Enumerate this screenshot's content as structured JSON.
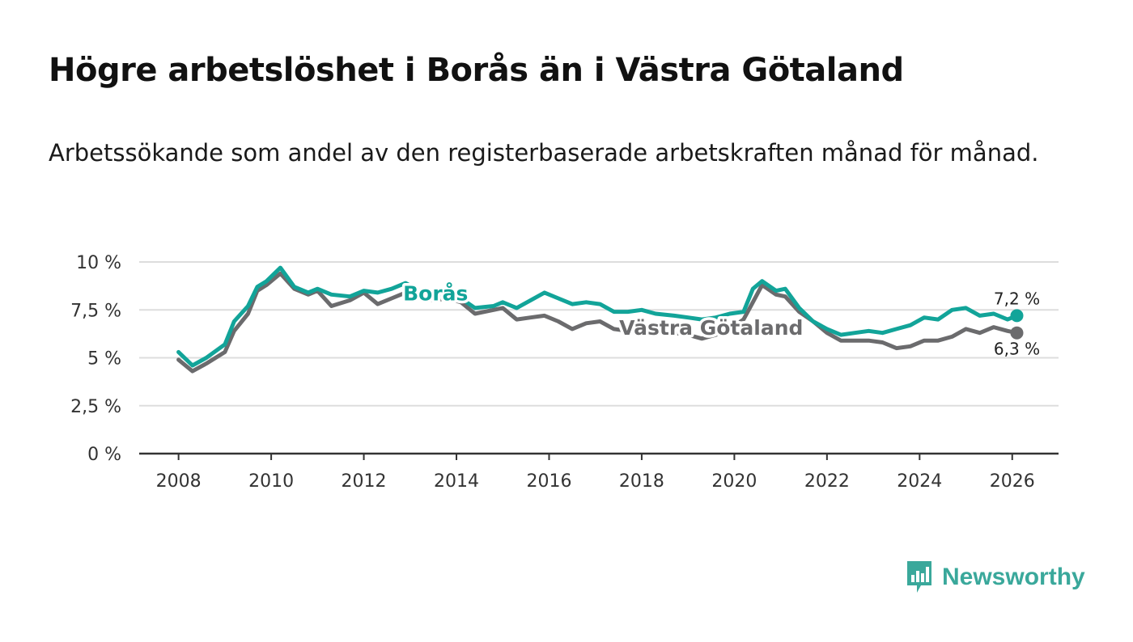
{
  "title": "Högre arbetslöshet i Borås än i Västra Götaland",
  "subtitle": "Arbetssökande som andel av den registerbaserade arbetskraften månad för månad.",
  "brand": "Newsworthy",
  "colors": {
    "boras": "#12a499",
    "vg": "#6b6b6d",
    "grid": "#dddddd",
    "axis": "#333333",
    "brand": "#3aa89b"
  },
  "chart_data": {
    "type": "line",
    "title": "Högre arbetslöshet i Borås än i Västra Götaland",
    "xlabel": "",
    "ylabel": "",
    "xlim": [
      2007.15,
      2027.0
    ],
    "ylim": [
      0,
      10
    ],
    "grid": true,
    "y_ticks": [
      0,
      2.5,
      5,
      7.5,
      10
    ],
    "y_tick_labels": [
      "0 %",
      "2,5 %",
      "5 %",
      "7,5 %",
      "10 %"
    ],
    "x_ticks": [
      2008,
      2010,
      2012,
      2014,
      2016,
      2018,
      2020,
      2022,
      2024,
      2026
    ],
    "x_tick_labels": [
      "2008",
      "2010",
      "2012",
      "2014",
      "2016",
      "2018",
      "2020",
      "2022",
      "2024",
      "2026"
    ],
    "series": [
      {
        "name": "Borås",
        "label": "Borås",
        "end_label": "7,2 %",
        "x": [
          2008.0,
          2008.3,
          2008.6,
          2009.0,
          2009.2,
          2009.5,
          2009.7,
          2009.9,
          2010.2,
          2010.5,
          2010.8,
          2011.0,
          2011.3,
          2011.7,
          2012.0,
          2012.3,
          2012.6,
          2012.9,
          2013.2,
          2013.5,
          2013.8,
          2014.1,
          2014.4,
          2014.8,
          2015.0,
          2015.3,
          2015.6,
          2015.9,
          2016.2,
          2016.5,
          2016.8,
          2017.1,
          2017.4,
          2017.7,
          2018.0,
          2018.3,
          2018.7,
          2019.0,
          2019.3,
          2019.6,
          2019.9,
          2020.2,
          2020.4,
          2020.6,
          2020.9,
          2021.1,
          2021.4,
          2021.7,
          2022.0,
          2022.3,
          2022.6,
          2022.9,
          2023.2,
          2023.5,
          2023.8,
          2024.1,
          2024.4,
          2024.7,
          2025.0,
          2025.3,
          2025.6,
          2025.9,
          2026.1
        ],
        "y": [
          5.3,
          4.6,
          5.0,
          5.7,
          6.9,
          7.7,
          8.7,
          9.0,
          9.7,
          8.7,
          8.4,
          8.6,
          8.3,
          8.2,
          8.5,
          8.4,
          8.6,
          8.9,
          8.5,
          8.3,
          8.2,
          8.1,
          7.6,
          7.7,
          7.9,
          7.6,
          8.0,
          8.4,
          8.1,
          7.8,
          7.9,
          7.8,
          7.4,
          7.4,
          7.5,
          7.3,
          7.2,
          7.1,
          7.0,
          7.1,
          7.3,
          7.4,
          8.6,
          9.0,
          8.5,
          8.6,
          7.6,
          6.9,
          6.5,
          6.2,
          6.3,
          6.4,
          6.3,
          6.5,
          6.7,
          7.1,
          7.0,
          7.5,
          7.6,
          7.2,
          7.3,
          7.0,
          7.2
        ]
      },
      {
        "name": "Västra Götaland",
        "label": "Västra Götaland",
        "end_label": "6,3 %",
        "x": [
          2008.0,
          2008.3,
          2008.6,
          2009.0,
          2009.2,
          2009.5,
          2009.7,
          2009.9,
          2010.2,
          2010.5,
          2010.8,
          2011.0,
          2011.3,
          2011.7,
          2012.0,
          2012.3,
          2012.6,
          2012.9,
          2013.2,
          2013.5,
          2013.8,
          2014.1,
          2014.4,
          2014.8,
          2015.0,
          2015.3,
          2015.6,
          2015.9,
          2016.2,
          2016.5,
          2016.8,
          2017.1,
          2017.4,
          2017.7,
          2018.0,
          2018.3,
          2018.7,
          2019.0,
          2019.3,
          2019.6,
          2019.9,
          2020.2,
          2020.4,
          2020.6,
          2020.9,
          2021.1,
          2021.4,
          2021.7,
          2022.0,
          2022.3,
          2022.6,
          2022.9,
          2023.2,
          2023.5,
          2023.8,
          2024.1,
          2024.4,
          2024.7,
          2025.0,
          2025.3,
          2025.6,
          2025.9,
          2026.1
        ],
        "y": [
          4.9,
          4.3,
          4.7,
          5.3,
          6.4,
          7.3,
          8.5,
          8.8,
          9.4,
          8.6,
          8.3,
          8.5,
          7.7,
          8.0,
          8.4,
          7.8,
          8.1,
          8.4,
          8.2,
          8.0,
          8.1,
          7.9,
          7.3,
          7.5,
          7.6,
          7.0,
          7.1,
          7.2,
          6.9,
          6.5,
          6.8,
          6.9,
          6.5,
          6.4,
          6.5,
          6.4,
          6.3,
          6.2,
          6.0,
          6.2,
          6.5,
          7.0,
          7.9,
          8.8,
          8.3,
          8.2,
          7.4,
          6.9,
          6.3,
          5.9,
          5.9,
          5.9,
          5.8,
          5.5,
          5.6,
          5.9,
          5.9,
          6.1,
          6.5,
          6.3,
          6.6,
          6.4,
          6.3
        ]
      }
    ]
  }
}
